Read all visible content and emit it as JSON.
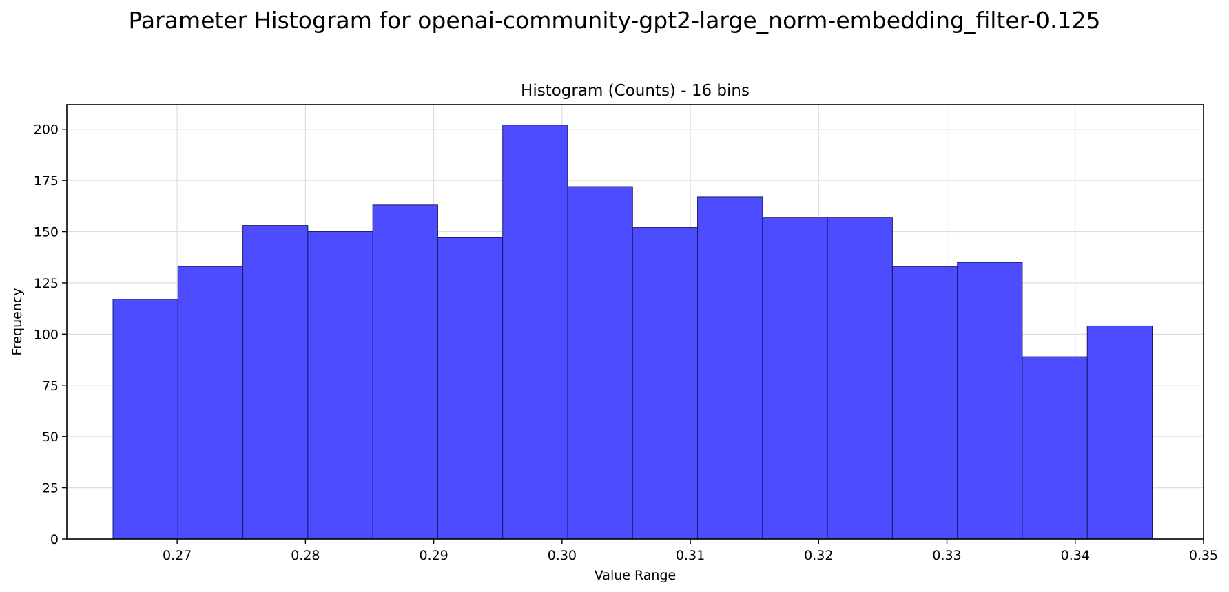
{
  "chart_data": {
    "type": "bar",
    "suptitle": "Parameter Histogram for openai-community-gpt2-large_norm-embedding_filter-0.125",
    "title": "Histogram (Counts) - 16 bins",
    "xlabel": "Value Range",
    "ylabel": "Frequency",
    "xlim": [
      0.2614,
      0.35
    ],
    "ylim": [
      0,
      212
    ],
    "xticks": [
      0.27,
      0.28,
      0.29,
      0.3,
      0.31,
      0.32,
      0.33,
      0.34,
      0.35
    ],
    "xtick_labels": [
      "0.27",
      "0.28",
      "0.29",
      "0.30",
      "0.31",
      "0.32",
      "0.33",
      "0.34",
      "0.35"
    ],
    "yticks": [
      0,
      25,
      50,
      75,
      100,
      125,
      150,
      175,
      200
    ],
    "ytick_labels": [
      "0",
      "25",
      "50",
      "75",
      "100",
      "125",
      "150",
      "175",
      "200"
    ],
    "bin_start": 0.265,
    "bin_end": 0.346,
    "bins": 16,
    "values": [
      117,
      133,
      153,
      150,
      163,
      147,
      202,
      172,
      152,
      167,
      157,
      157,
      133,
      135,
      89,
      104
    ],
    "bar_color": "#4d4dff",
    "edge_color": "#1a1a66",
    "grid": true,
    "legend": "none"
  }
}
